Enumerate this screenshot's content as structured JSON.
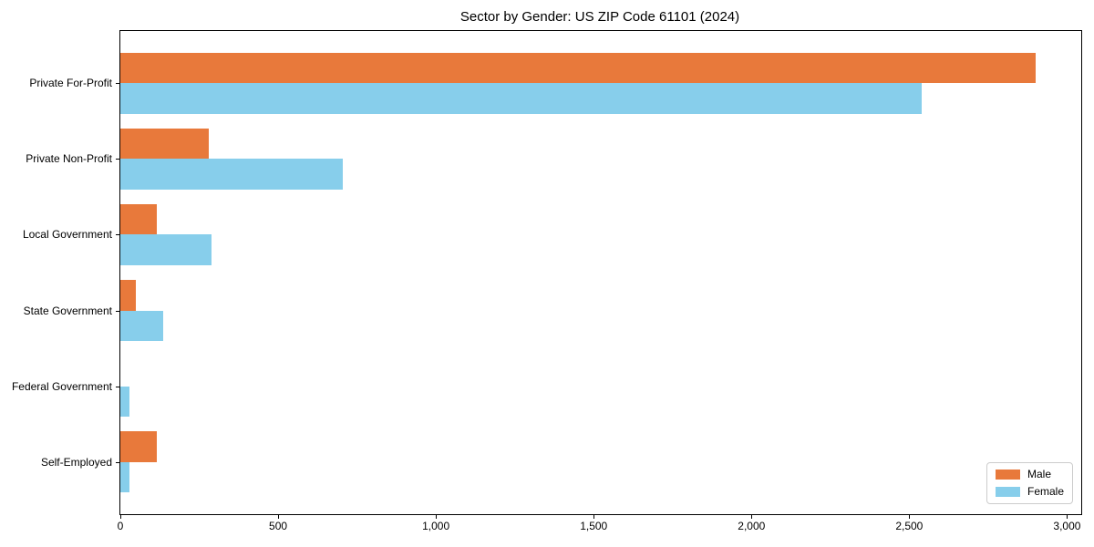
{
  "title": "Sector by Gender: US ZIP Code 61101 (2024)",
  "colors": {
    "male_bar": "#E8793B",
    "female_bar": "#87CEEB",
    "axis": "#000000",
    "legend_border": "#cccccc",
    "background": "#ffffff"
  },
  "chart_data": {
    "type": "bar",
    "orientation": "horizontal",
    "title": "Sector by Gender: US ZIP Code 61101 (2024)",
    "xlabel": "",
    "ylabel": "",
    "categories": [
      "Private For-Profit",
      "Private Non-Profit",
      "Local Government",
      "State Government",
      "Federal Government",
      "Self-Employed"
    ],
    "series": [
      {
        "name": "Male",
        "color": "#E8793B",
        "values": [
          2900,
          280,
          115,
          50,
          0,
          115
        ]
      },
      {
        "name": "Female",
        "color": "#87CEEB",
        "values": [
          2540,
          705,
          290,
          135,
          30,
          30
        ]
      }
    ],
    "xlim": [
      0,
      3045
    ],
    "xticks": [
      0,
      500,
      1000,
      1500,
      2000,
      2500,
      3000
    ],
    "xtick_labels": [
      "0",
      "500",
      "1,000",
      "1,500",
      "2,000",
      "2,500",
      "3,000"
    ],
    "grid": false,
    "legend": {
      "position": "lower right",
      "entries": [
        "Male",
        "Female"
      ]
    }
  }
}
